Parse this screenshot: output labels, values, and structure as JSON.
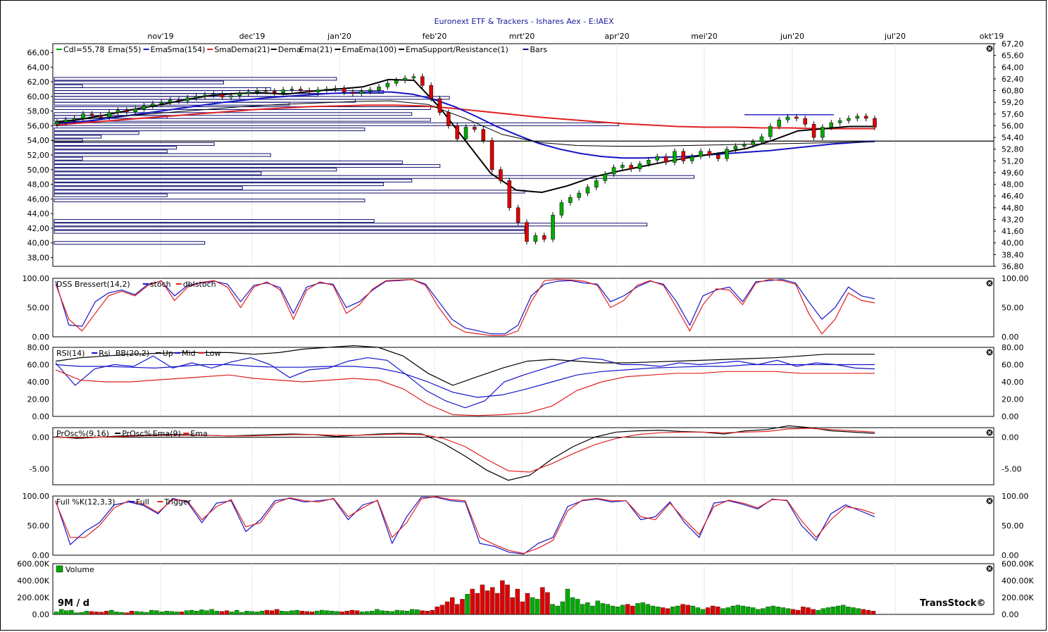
{
  "title": "Euronext ETF & Trackers - Ishares Aex - E:IAEX",
  "period_label": "9M / d",
  "brand": "TransStock©",
  "months": [
    "nov'19",
    "dec'19",
    "jan'20",
    "feb'20",
    "mrt'20",
    "apr'20",
    "mei'20",
    "jun'20",
    "jul'20",
    "okt'19"
  ],
  "colors": {
    "up": "#00aa00",
    "down": "#dd0000",
    "blue": "#1414c8",
    "red": "#e02020",
    "black": "#000000",
    "bars": "#101070"
  },
  "chart_data": [
    {
      "id": "price",
      "type": "candlestick",
      "legend": [
        "Cdl=55,78",
        "Ema(55)",
        "Ema",
        "Sma(154)",
        "Sma",
        "Dema(21)",
        "Dema",
        "Ema(21)",
        "Ema",
        "Ema(100)",
        "Ema",
        "Support/Resistance(1)",
        "Bars"
      ],
      "ylim": [
        36.8,
        67.2
      ],
      "y_ticks_left": [
        "66,00",
        "64,00",
        "62,00",
        "60,00",
        "58,00",
        "56,00",
        "54,00",
        "52,00",
        "50,00",
        "48,00",
        "46,00",
        "44,00",
        "42,00",
        "40,00",
        "38,00"
      ],
      "y_ticks_right": [
        "67,20",
        "65,60",
        "64,00",
        "62,40",
        "60,80",
        "59,20",
        "57,60",
        "56,00",
        "54,40",
        "52,80",
        "51,20",
        "49,60",
        "48,00",
        "46,40",
        "44,80",
        "43,20",
        "41,60",
        "40,00",
        "38,40",
        "36,80"
      ],
      "close_series": [
        56.5,
        56.8,
        57.0,
        57.6,
        57.4,
        57.2,
        57.8,
        58.1,
        57.9,
        58.3,
        58.7,
        59.0,
        59.2,
        59.5,
        59.4,
        59.8,
        60.0,
        60.2,
        60.3,
        59.9,
        60.1,
        60.4,
        60.6,
        60.8,
        60.7,
        60.5,
        60.9,
        61.0,
        60.8,
        60.6,
        60.9,
        61.0,
        61.1,
        60.6,
        60.4,
        60.7,
        60.9,
        61.3,
        61.8,
        62.2,
        62.5,
        62.7,
        61.5,
        59.7,
        57.8,
        56.0,
        54.2,
        55.8,
        55.5,
        54.0,
        50.0,
        48.5,
        44.8,
        42.8,
        40.2,
        41.0,
        40.5,
        43.8,
        45.5,
        46.2,
        46.8,
        47.6,
        48.5,
        49.4,
        50.3,
        50.6,
        50.1,
        50.8,
        51.3,
        51.8,
        51.0,
        52.5,
        51.2,
        51.8,
        52.5,
        52.0,
        51.5,
        52.8,
        53.2,
        53.4,
        53.8,
        54.5,
        55.9,
        56.8,
        57.2,
        57.0,
        56.2,
        54.4,
        55.8,
        56.4,
        56.7,
        57.0,
        57.3,
        57.0,
        55.8
      ],
      "ema_blue_series": [
        56.3,
        56.5,
        56.8,
        57.2,
        57.6,
        58.0,
        58.4,
        58.8,
        59.2,
        59.5,
        59.8,
        60.0,
        60.2,
        60.4,
        60.5,
        60.6,
        60.6,
        60.3,
        59.6,
        58.6,
        57.3,
        55.9,
        54.7,
        53.6,
        52.8,
        52.2,
        51.8,
        51.6,
        51.6,
        51.7,
        51.8,
        52.0,
        52.2,
        52.4,
        52.6,
        52.9,
        53.2,
        53.5,
        53.7,
        53.9
      ],
      "sma_red_series": [
        56.1,
        56.4,
        56.7,
        57.0,
        57.3,
        57.6,
        57.9,
        58.2,
        58.4,
        58.6,
        58.7,
        58.8,
        58.8,
        58.7,
        58.4,
        58.0,
        57.6,
        57.2,
        56.9,
        56.6,
        56.3,
        56.1,
        55.9,
        55.8,
        55.8,
        55.7,
        55.7,
        55.6,
        55.6,
        55.6
      ],
      "dema_black_series": [
        56.4,
        56.9,
        57.5,
        58.2,
        58.8,
        59.5,
        60.1,
        60.4,
        60.5,
        60.3,
        60.7,
        61.0,
        61.3,
        62.3,
        62.2,
        58.5,
        54.0,
        49.5,
        47.2,
        46.9,
        47.8,
        49.0,
        49.8,
        50.5,
        51.2,
        51.8,
        52.3,
        52.9,
        54.0,
        55.3,
        55.6,
        55.9,
        55.9
      ],
      "ema100_series": [
        56.6,
        57.0,
        57.4,
        57.8,
        58.2,
        58.6,
        58.9,
        59.1,
        59.3,
        59.4,
        58.9,
        57.0,
        54.8,
        53.7,
        53.3,
        53.2,
        53.2,
        53.3,
        53.4,
        53.5,
        53.6,
        53.7,
        53.8
      ],
      "support_resistance": [
        {
          "value": 57.5,
          "from": 0.735,
          "to": 0.83
        },
        {
          "value": 53.9,
          "from": 0.0,
          "to": 1.0
        }
      ],
      "support_resistance_levels_left": [
        {
          "value": 61.4,
          "len": 0.03
        },
        {
          "value": 61.9,
          "len": 0.18
        },
        {
          "value": 62.4,
          "len": 0.3
        },
        {
          "value": 61.0,
          "len": 0.23
        },
        {
          "value": 60.6,
          "len": 0.35
        },
        {
          "value": 60.2,
          "len": 0.28
        },
        {
          "value": 59.8,
          "len": 0.42
        },
        {
          "value": 59.4,
          "len": 0.32
        },
        {
          "value": 59.0,
          "len": 0.25
        },
        {
          "value": 58.4,
          "len": 0.4
        },
        {
          "value": 57.6,
          "len": 0.38
        },
        {
          "value": 57.2,
          "len": 0.12
        },
        {
          "value": 56.8,
          "len": 0.4
        },
        {
          "value": 56.2,
          "len": 0.6
        },
        {
          "value": 55.5,
          "len": 0.33
        },
        {
          "value": 55.0,
          "len": 0.09
        },
        {
          "value": 54.5,
          "len": 0.05
        },
        {
          "value": 54.0,
          "len": 0.03
        },
        {
          "value": 53.5,
          "len": 0.17
        },
        {
          "value": 53.0,
          "len": 0.13
        },
        {
          "value": 52.5,
          "len": 0.12
        },
        {
          "value": 52.0,
          "len": 0.23
        },
        {
          "value": 51.5,
          "len": 0.03
        },
        {
          "value": 51.0,
          "len": 0.37
        },
        {
          "value": 50.5,
          "len": 0.41
        },
        {
          "value": 50.0,
          "len": 0.3
        },
        {
          "value": 49.5,
          "len": 0.22
        },
        {
          "value": 49.0,
          "len": 0.68
        },
        {
          "value": 48.5,
          "len": 0.38
        },
        {
          "value": 48.0,
          "len": 0.35
        },
        {
          "value": 47.5,
          "len": 0.2
        },
        {
          "value": 47.0,
          "len": 0.5
        },
        {
          "value": 46.5,
          "len": 0.12
        },
        {
          "value": 45.8,
          "len": 0.33
        },
        {
          "value": 43.0,
          "len": 0.34
        },
        {
          "value": 42.5,
          "len": 0.63
        },
        {
          "value": 42.0,
          "len": 0.5
        },
        {
          "value": 41.5,
          "len": 0.5
        },
        {
          "value": 40.0,
          "len": 0.16
        }
      ]
    },
    {
      "id": "dss",
      "type": "line",
      "legend": [
        "DSS Bressert(14,2)",
        "stoch",
        "dblstoch"
      ],
      "ylim": [
        0,
        100
      ],
      "y_ticks": [
        "100.00",
        "50.00",
        "0.00"
      ],
      "series": [
        {
          "key": "stoch",
          "values": [
            95,
            20,
            18,
            60,
            75,
            80,
            72,
            90,
            95,
            70,
            88,
            92,
            95,
            90,
            60,
            88,
            92,
            84,
            40,
            85,
            92,
            90,
            50,
            60,
            80,
            95,
            96,
            98,
            90,
            60,
            30,
            15,
            10,
            5,
            5,
            20,
            70,
            90,
            95,
            96,
            92,
            90,
            60,
            70,
            85,
            95,
            90,
            60,
            20,
            70,
            80,
            85,
            60,
            94,
            96,
            98,
            92,
            60,
            30,
            50,
            85,
            70,
            65
          ]
        },
        {
          "key": "dblstoch",
          "values": [
            90,
            30,
            10,
            40,
            70,
            78,
            70,
            88,
            96,
            62,
            85,
            93,
            96,
            85,
            50,
            85,
            94,
            80,
            30,
            80,
            94,
            88,
            40,
            55,
            82,
            96,
            97,
            98,
            88,
            50,
            20,
            8,
            5,
            2,
            2,
            10,
            60,
            96,
            98,
            97,
            95,
            88,
            50,
            62,
            88,
            96,
            88,
            50,
            10,
            55,
            82,
            80,
            55,
            92,
            98,
            96,
            90,
            40,
            5,
            30,
            75,
            62,
            58
          ]
        }
      ]
    },
    {
      "id": "rsi",
      "type": "line",
      "legend": [
        "RSI(14)",
        "Rsi",
        "BB(20,2)",
        "Up",
        "Mid",
        "Low"
      ],
      "ylim": [
        0,
        80
      ],
      "y_ticks": [
        "80.00",
        "60.00",
        "40.00",
        "20.00",
        "0.00"
      ],
      "series": [
        {
          "key": "rsi",
          "values": [
            62,
            36,
            55,
            60,
            58,
            70,
            56,
            62,
            56,
            63,
            68,
            60,
            45,
            54,
            56,
            64,
            68,
            65,
            48,
            30,
            18,
            10,
            18,
            40,
            48,
            55,
            62,
            68,
            66,
            60,
            60,
            58,
            62,
            60,
            62,
            64,
            60,
            65,
            58,
            62,
            60,
            56,
            55
          ]
        },
        {
          "key": "up",
          "values": [
            64,
            68,
            70,
            72,
            73,
            74,
            74,
            74,
            72,
            74,
            78,
            80,
            82,
            80,
            70,
            50,
            36,
            46,
            56,
            64,
            66,
            64,
            62,
            62,
            63,
            64,
            65,
            66,
            67,
            68,
            70,
            72,
            72,
            72
          ]
        },
        {
          "key": "mid",
          "values": [
            60,
            58,
            58,
            57,
            56,
            58,
            60,
            60,
            58,
            57,
            57,
            58,
            58,
            56,
            50,
            40,
            28,
            22,
            25,
            32,
            40,
            48,
            52,
            54,
            56,
            57,
            58,
            58,
            60,
            60,
            60,
            60,
            60,
            60
          ]
        },
        {
          "key": "low",
          "values": [
            54,
            42,
            40,
            40,
            42,
            44,
            46,
            48,
            44,
            42,
            40,
            42,
            44,
            42,
            32,
            14,
            2,
            1,
            2,
            4,
            12,
            30,
            40,
            46,
            48,
            50,
            50,
            52,
            52,
            52,
            50,
            50,
            50,
            50
          ]
        }
      ]
    },
    {
      "id": "prosc",
      "type": "line",
      "legend": [
        "PrOsc%(9,16)",
        "PrOsc%",
        "Ema(9)",
        "Ema"
      ],
      "ylim": [
        -7.5,
        1.5
      ],
      "y_ticks": [
        "0.00",
        "-5.00"
      ],
      "series": [
        {
          "key": "prosc",
          "values": [
            0.1,
            -0.2,
            0.0,
            0.2,
            0.3,
            0.4,
            0.4,
            0.3,
            0.2,
            0.3,
            0.4,
            0.5,
            0.4,
            0.1,
            0.3,
            0.5,
            0.6,
            0.5,
            -1.0,
            -3.0,
            -5.2,
            -6.8,
            -6.0,
            -3.5,
            -1.5,
            0.0,
            0.8,
            1.0,
            1.1,
            0.9,
            0.8,
            0.5,
            1.0,
            1.2,
            1.8,
            1.5,
            1.0,
            0.8,
            0.6
          ]
        },
        {
          "key": "ema",
          "values": [
            0.0,
            -0.1,
            0.0,
            0.1,
            0.2,
            0.3,
            0.3,
            0.3,
            0.2,
            0.2,
            0.3,
            0.4,
            0.4,
            0.3,
            0.3,
            0.4,
            0.5,
            0.4,
            -0.2,
            -1.5,
            -3.5,
            -5.3,
            -5.5,
            -4.2,
            -2.6,
            -1.2,
            -0.2,
            0.4,
            0.7,
            0.8,
            0.8,
            0.7,
            0.8,
            0.9,
            1.3,
            1.4,
            1.2,
            1.0,
            0.8
          ]
        }
      ]
    },
    {
      "id": "fullk",
      "type": "line",
      "legend": [
        "Full %K(12,3,3)",
        "Full",
        "Trigger"
      ],
      "ylim": [
        0,
        100
      ],
      "y_ticks": [
        "100.00",
        "50.00",
        "0.00"
      ],
      "series": [
        {
          "key": "full",
          "values": [
            92,
            18,
            40,
            55,
            85,
            90,
            84,
            70,
            96,
            90,
            55,
            88,
            92,
            40,
            60,
            92,
            96,
            90,
            92,
            95,
            60,
            85,
            92,
            20,
            65,
            98,
            98,
            92,
            90,
            20,
            15,
            5,
            2,
            20,
            30,
            82,
            92,
            95,
            90,
            92,
            60,
            65,
            90,
            55,
            30,
            88,
            92,
            86,
            78,
            95,
            92,
            50,
            25,
            70,
            85,
            75,
            65
          ]
        },
        {
          "key": "trigger",
          "values": [
            90,
            30,
            30,
            50,
            80,
            92,
            86,
            72,
            94,
            92,
            60,
            82,
            94,
            48,
            55,
            88,
            97,
            92,
            90,
            96,
            65,
            80,
            93,
            30,
            55,
            95,
            99,
            94,
            92,
            30,
            18,
            8,
            3,
            12,
            25,
            75,
            93,
            96,
            92,
            92,
            65,
            60,
            88,
            60,
            35,
            82,
            93,
            88,
            80,
            94,
            93,
            58,
            30,
            60,
            82,
            78,
            70
          ]
        }
      ]
    },
    {
      "id": "volume",
      "type": "bar",
      "legend": [
        "Volume"
      ],
      "ylim": [
        0,
        600000
      ],
      "y_ticks": [
        "600.00K",
        "400.00K",
        "200.00K",
        "0.00"
      ],
      "values": [
        30,
        60,
        45,
        50,
        20,
        25,
        40,
        35,
        30,
        28,
        40,
        50,
        30,
        25,
        20,
        40,
        35,
        30,
        25,
        50,
        45,
        30,
        40,
        35,
        30,
        30,
        45,
        50,
        40,
        55,
        45,
        60,
        40,
        35,
        45,
        30,
        50,
        25,
        40,
        35,
        30,
        40,
        50,
        45,
        60,
        40,
        35,
        45,
        50,
        40,
        35,
        30,
        40,
        50,
        45,
        40,
        35,
        30,
        40,
        50,
        45,
        30,
        35,
        40,
        60,
        45,
        40,
        35,
        50,
        45,
        40,
        60,
        55,
        45,
        40,
        50,
        90,
        110,
        150,
        200,
        120,
        180,
        240,
        300,
        250,
        350,
        280,
        320,
        250,
        400,
        350,
        200,
        300,
        150,
        250,
        200,
        180,
        320,
        260,
        120,
        100,
        150,
        300,
        200,
        180,
        120,
        140,
        100,
        160,
        130,
        120,
        100,
        90,
        110,
        120,
        100,
        130,
        140,
        120,
        100,
        90,
        80,
        70,
        90,
        100,
        120,
        110,
        100,
        80,
        60,
        80,
        100,
        90,
        70,
        80,
        100,
        110,
        100,
        90,
        80,
        60,
        70,
        90,
        100,
        90,
        80,
        70,
        60,
        50,
        90,
        80,
        60,
        50,
        70,
        80,
        90,
        100,
        110,
        90,
        80,
        70,
        60,
        50,
        40
      ],
      "units": "K"
    }
  ]
}
